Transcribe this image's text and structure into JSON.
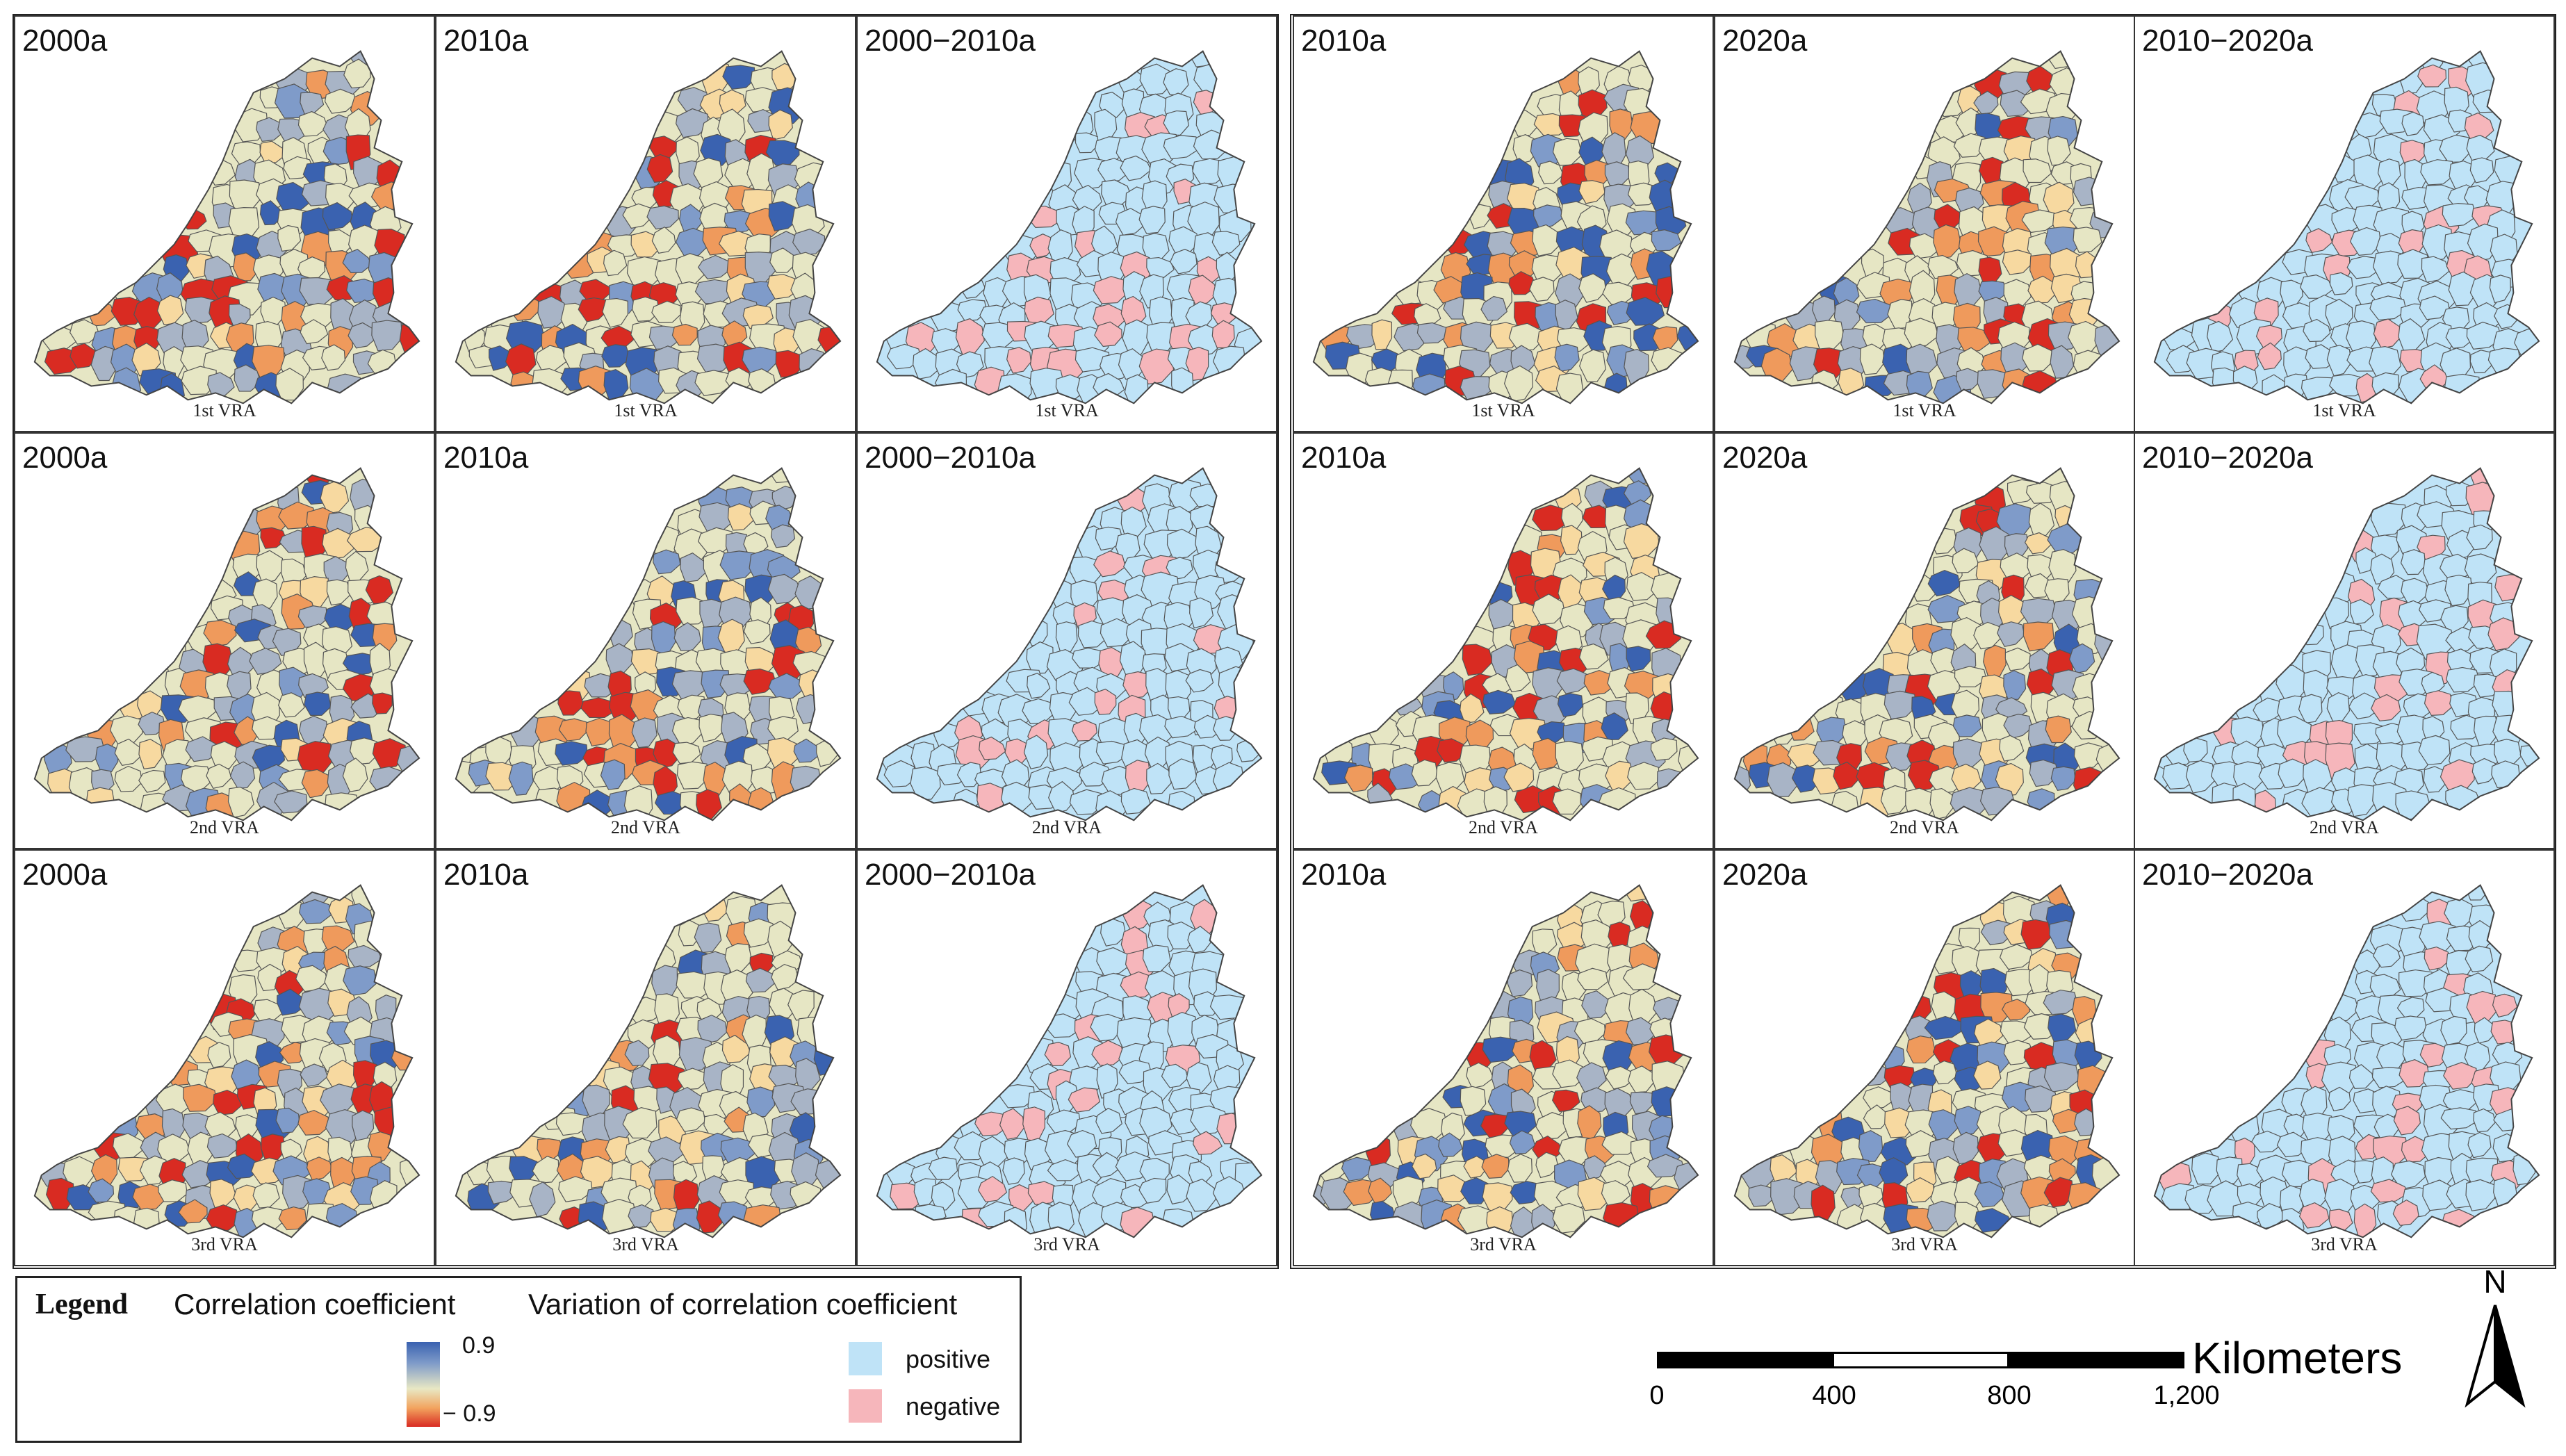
{
  "colors": {
    "neutral": "#e6e6c4",
    "blue_dark": "#3a62b0",
    "blue_mid": "#7f9bc9",
    "gray_blue": "#a8b4c6",
    "light_orange": "#f7d9a0",
    "orange": "#ef9a5c",
    "red": "#d92b22",
    "positive": "#bfe3f7",
    "negative": "#f6b6bb",
    "border": "#555555"
  },
  "rows": [
    {
      "label": "1st VRA",
      "panels": [
        {
          "title": "2000a",
          "kind": "coef"
        },
        {
          "title": "2010a",
          "kind": "coef"
        },
        {
          "title": "2000−2010a",
          "kind": "var"
        },
        {
          "title": "2010a",
          "kind": "coef"
        },
        {
          "title": "2020a",
          "kind": "coef"
        },
        {
          "title": "2010−2020a",
          "kind": "var"
        }
      ]
    },
    {
      "label": "2nd VRA",
      "panels": [
        {
          "title": "2000a",
          "kind": "coef"
        },
        {
          "title": "2010a",
          "kind": "coef"
        },
        {
          "title": "2000−2010a",
          "kind": "var"
        },
        {
          "title": "2010a",
          "kind": "coef"
        },
        {
          "title": "2020a",
          "kind": "coef"
        },
        {
          "title": "2010−2020a",
          "kind": "var"
        }
      ]
    },
    {
      "label": "3rd VRA",
      "panels": [
        {
          "title": "2000a",
          "kind": "coef"
        },
        {
          "title": "2010a",
          "kind": "coef"
        },
        {
          "title": "2000−2010a",
          "kind": "var"
        },
        {
          "title": "2010a",
          "kind": "coef"
        },
        {
          "title": "2020a",
          "kind": "coef"
        },
        {
          "title": "2010−2020a",
          "kind": "var"
        }
      ]
    }
  ],
  "legend": {
    "title": "Legend",
    "correlation_label": "Correlation coefficient",
    "variation_label": "Variation of correlation coefficient",
    "max_value": "0.9",
    "min_value": "− 0.9",
    "positive_label": "positive",
    "negative_label": "negative"
  },
  "scale": {
    "unit": "Kilometers",
    "ticks": [
      "0",
      "400",
      "800",
      "1,200"
    ]
  },
  "north_label": "N"
}
